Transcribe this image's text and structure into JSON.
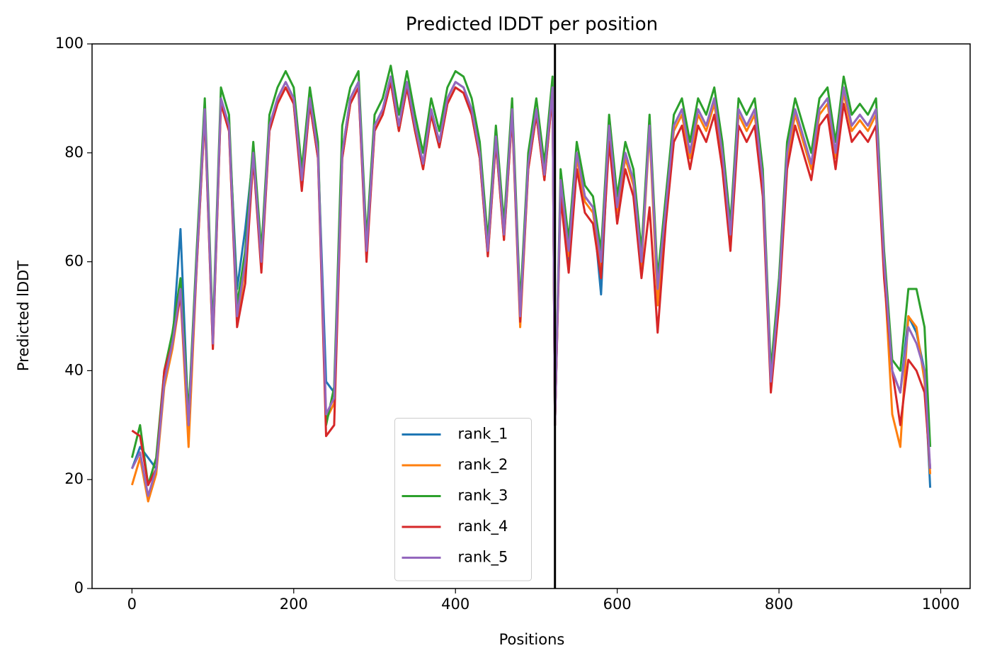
{
  "chart_data": {
    "type": "line",
    "title": "Predicted lDDT per position",
    "xlabel": "Positions",
    "ylabel": "Predicted lDDT",
    "x": [
      0,
      10,
      20,
      30,
      40,
      50,
      60,
      70,
      80,
      90,
      100,
      110,
      120,
      130,
      140,
      150,
      160,
      170,
      180,
      190,
      200,
      210,
      220,
      230,
      240,
      250,
      260,
      270,
      280,
      290,
      300,
      310,
      320,
      330,
      340,
      350,
      360,
      370,
      380,
      390,
      400,
      410,
      420,
      430,
      440,
      450,
      460,
      470,
      480,
      490,
      500,
      510,
      520,
      523,
      530,
      540,
      550,
      560,
      570,
      580,
      590,
      600,
      610,
      620,
      630,
      640,
      650,
      660,
      670,
      680,
      690,
      700,
      710,
      720,
      730,
      740,
      750,
      760,
      770,
      780,
      790,
      800,
      810,
      820,
      830,
      840,
      850,
      860,
      870,
      880,
      890,
      900,
      910,
      920,
      930,
      940,
      950,
      960,
      970,
      980,
      987
    ],
    "series": [
      {
        "name": "rank_1",
        "color": "#1f77b4",
        "values": [
          22,
          26,
          24,
          22,
          38,
          45,
          66,
          30,
          60,
          88,
          45,
          90,
          85,
          55,
          66,
          80,
          60,
          85,
          90,
          93,
          90,
          75,
          90,
          80,
          38,
          36,
          80,
          90,
          93,
          62,
          85,
          88,
          94,
          85,
          93,
          85,
          78,
          88,
          82,
          90,
          93,
          92,
          88,
          80,
          62,
          83,
          65,
          88,
          50,
          78,
          88,
          76,
          92,
          30,
          73,
          60,
          80,
          72,
          70,
          54,
          85,
          70,
          80,
          75,
          60,
          85,
          55,
          70,
          85,
          88,
          80,
          88,
          85,
          90,
          80,
          65,
          88,
          85,
          88,
          75,
          38,
          55,
          80,
          88,
          83,
          78,
          88,
          90,
          80,
          92,
          85,
          87,
          85,
          88,
          60,
          40,
          36,
          50,
          47,
          40,
          18.5
        ]
      },
      {
        "name": "rank_2",
        "color": "#ff7f0e",
        "values": [
          19,
          24,
          16,
          21,
          37,
          44,
          54,
          26,
          59,
          87,
          44,
          89,
          84,
          49,
          59,
          79,
          59,
          84,
          89,
          92,
          89,
          74,
          89,
          79,
          31,
          34,
          79,
          89,
          92,
          61,
          84,
          87,
          93,
          84,
          92,
          84,
          77,
          87,
          81,
          89,
          92,
          91,
          87,
          79,
          61,
          82,
          64,
          87,
          48,
          77,
          87,
          75,
          91,
          30,
          74,
          61,
          79,
          71,
          69,
          59,
          84,
          69,
          79,
          74,
          59,
          84,
          52,
          69,
          84,
          87,
          79,
          87,
          84,
          89,
          79,
          64,
          87,
          84,
          87,
          74,
          37,
          54,
          79,
          87,
          82,
          77,
          87,
          89,
          79,
          91,
          84,
          86,
          84,
          87,
          59,
          32,
          26,
          50,
          48,
          38,
          21
        ]
      },
      {
        "name": "rank_3",
        "color": "#2ca02c",
        "values": [
          24,
          30,
          19,
          24,
          40,
          47,
          57,
          32,
          62,
          90,
          47,
          92,
          87,
          52,
          62,
          82,
          62,
          87,
          92,
          95,
          92,
          77,
          92,
          82,
          30,
          37,
          85,
          92,
          95,
          64,
          87,
          90,
          96,
          87,
          95,
          87,
          80,
          90,
          84,
          92,
          95,
          94,
          90,
          82,
          64,
          85,
          67,
          90,
          52,
          80,
          90,
          78,
          94,
          30,
          77,
          64,
          82,
          74,
          72,
          62,
          87,
          72,
          82,
          77,
          62,
          87,
          57,
          72,
          87,
          90,
          82,
          90,
          87,
          92,
          82,
          67,
          90,
          87,
          90,
          77,
          40,
          57,
          82,
          90,
          85,
          80,
          90,
          92,
          82,
          94,
          87,
          89,
          87,
          90,
          62,
          42,
          40,
          55,
          55,
          48,
          26
        ]
      },
      {
        "name": "rank_4",
        "color": "#d62728",
        "values": [
          29,
          28,
          19,
          22,
          40,
          45,
          54,
          30,
          59,
          87,
          44,
          89,
          84,
          48,
          56,
          79,
          58,
          84,
          89,
          92,
          89,
          73,
          89,
          79,
          28,
          30,
          79,
          89,
          92,
          60,
          84,
          87,
          93,
          84,
          92,
          84,
          77,
          87,
          81,
          89,
          92,
          91,
          87,
          79,
          61,
          82,
          64,
          87,
          49,
          77,
          87,
          75,
          91,
          30,
          72,
          58,
          77,
          69,
          67,
          57,
          82,
          67,
          77,
          72,
          57,
          70,
          47,
          67,
          82,
          85,
          77,
          85,
          82,
          87,
          77,
          62,
          85,
          82,
          85,
          72,
          36,
          52,
          77,
          85,
          80,
          75,
          85,
          87,
          77,
          89,
          82,
          84,
          82,
          85,
          57,
          40,
          30,
          42,
          40,
          36,
          22
        ]
      },
      {
        "name": "rank_5",
        "color": "#9467bd",
        "values": [
          22,
          25,
          17,
          22,
          38,
          45,
          55,
          30,
          60,
          88,
          45,
          90,
          85,
          50,
          60,
          80,
          60,
          85,
          90,
          93,
          90,
          75,
          90,
          80,
          32,
          35,
          80,
          90,
          93,
          62,
          85,
          88,
          94,
          85,
          93,
          85,
          78,
          88,
          82,
          90,
          93,
          92,
          88,
          80,
          62,
          83,
          65,
          88,
          50,
          78,
          88,
          76,
          92,
          30,
          75,
          62,
          80,
          72,
          70,
          60,
          85,
          70,
          80,
          75,
          60,
          85,
          55,
          70,
          85,
          88,
          80,
          88,
          85,
          90,
          80,
          65,
          88,
          85,
          88,
          75,
          38,
          55,
          80,
          88,
          83,
          78,
          88,
          90,
          80,
          92,
          85,
          87,
          85,
          88,
          60,
          40,
          36,
          48,
          45,
          40,
          22
        ]
      }
    ],
    "vline_x": 523,
    "xlim": [
      -49.35,
      1036.35
    ],
    "xticks": [
      0,
      200,
      400,
      600,
      800,
      1000
    ],
    "ylim": [
      0,
      100
    ],
    "yticks": [
      0,
      20,
      40,
      60,
      80,
      100
    ],
    "legend": "lower center"
  }
}
